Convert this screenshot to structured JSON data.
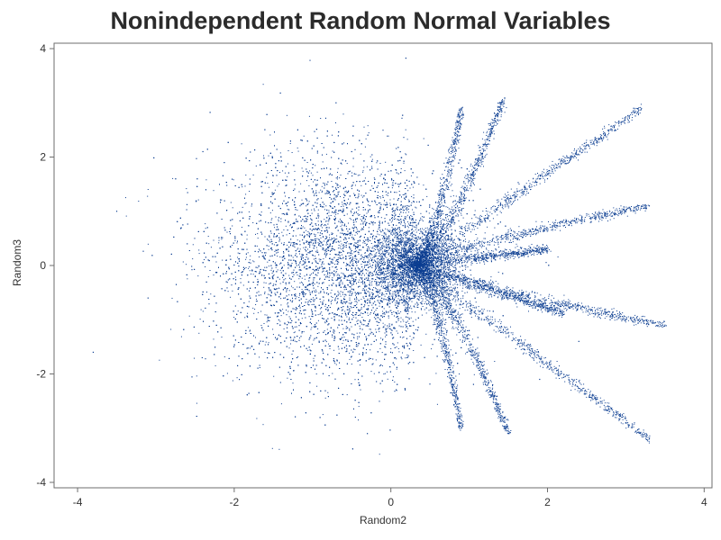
{
  "chart_data": {
    "type": "scatter",
    "title": "Nonindependent Random Normal Variables",
    "xlabel": "Random2",
    "ylabel": "Random3",
    "xlim": [
      -4.3,
      4.1
    ],
    "ylim": [
      -4.1,
      4.1
    ],
    "xticks": [
      -4,
      -2,
      0,
      2,
      4
    ],
    "yticks": [
      -4,
      -2,
      0,
      2,
      4
    ],
    "grid": false,
    "legend": "none",
    "marker_color": "#0b3d91",
    "series": [
      {
        "points": [
          [
            -0.9,
            0.6
          ],
          [
            -0.6,
            -0.4
          ],
          [
            -1.3,
            0.1
          ],
          [
            -0.3,
            1.2
          ],
          [
            -0.2,
            -1.3
          ],
          [
            -1.0,
            -0.9
          ],
          [
            -1.6,
            0.8
          ],
          [
            -0.5,
            2.1
          ],
          [
            -0.4,
            -2.2
          ],
          [
            -2.1,
            -0.3
          ],
          [
            -1.8,
            1.5
          ],
          [
            -1.2,
            -1.7
          ],
          [
            -2.6,
            0.4
          ],
          [
            -3.1,
            -0.6
          ],
          [
            -2.4,
            2.1
          ],
          [
            -0.7,
            3.0
          ],
          [
            -0.3,
            -3.1
          ],
          [
            -3.5,
            1.0
          ],
          [
            -3.8,
            -1.6
          ],
          [
            -1.0,
            1.8
          ],
          [
            0.2,
            0.1
          ],
          [
            0.3,
            -0.1
          ],
          [
            0.4,
            0.05
          ],
          [
            0.5,
            0.2
          ],
          [
            0.6,
            1.0
          ],
          [
            0.8,
            2.0
          ],
          [
            0.9,
            2.9
          ],
          [
            0.7,
            -1.0
          ],
          [
            0.8,
            -2.2
          ],
          [
            0.9,
            -3.0
          ],
          [
            1.0,
            1.2
          ],
          [
            1.2,
            2.0
          ],
          [
            1.4,
            3.0
          ],
          [
            1.0,
            -1.2
          ],
          [
            1.3,
            -2.2
          ],
          [
            1.5,
            -3.1
          ],
          [
            1.4,
            0.8
          ],
          [
            2.0,
            1.6
          ],
          [
            2.7,
            2.3
          ],
          [
            3.1,
            2.9
          ],
          [
            1.6,
            0.5
          ],
          [
            2.5,
            0.95
          ],
          [
            3.3,
            1.1
          ],
          [
            1.6,
            -0.7
          ],
          [
            2.4,
            -1.4
          ],
          [
            3.0,
            -2.9
          ],
          [
            3.3,
            -3.2
          ],
          [
            1.3,
            -0.3
          ],
          [
            2.1,
            -0.8
          ],
          [
            2.8,
            -1.0
          ],
          [
            3.5,
            -1.1
          ],
          [
            0.1,
            -0.5
          ],
          [
            -0.1,
            0.4
          ],
          [
            1.9,
            -2.1
          ]
        ]
      }
    ]
  }
}
